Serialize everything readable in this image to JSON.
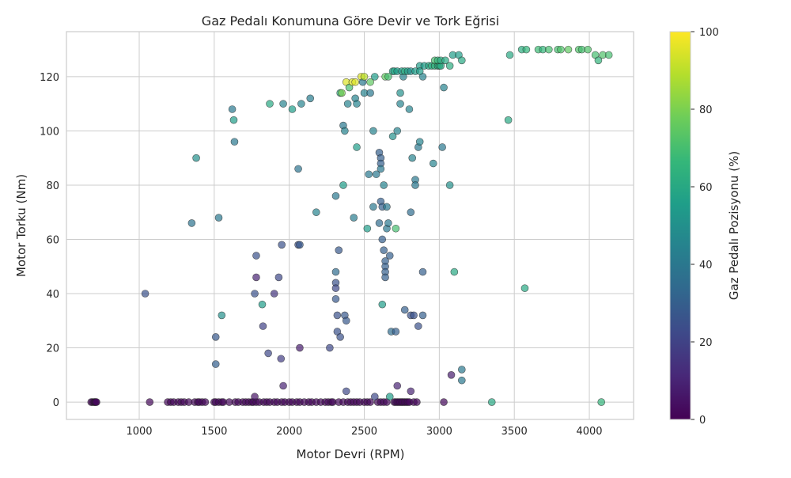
{
  "chart_data": {
    "type": "scatter",
    "title": "Gaz Pedalı Konumuna Göre Devir ve Tork Eğrisi",
    "xlabel": "Motor Devri (RPM)",
    "ylabel": "Motor Torku (Nm)",
    "colorbar_label": "Gaz Pedalı Pozisyonu (%)",
    "xlim": [
      515,
      4295
    ],
    "ylim": [
      -6.4,
      136.6
    ],
    "clim": [
      0,
      100
    ],
    "xticks": [
      "1000",
      "1500",
      "2000",
      "2500",
      "3000",
      "3500",
      "4000"
    ],
    "xtick_values": [
      1000,
      1500,
      2000,
      2500,
      3000,
      3500,
      4000
    ],
    "yticks": [
      "0",
      "20",
      "40",
      "60",
      "80",
      "100",
      "120"
    ],
    "ytick_values": [
      0,
      20,
      40,
      60,
      80,
      100,
      120
    ],
    "cticks": [
      "0",
      "20",
      "40",
      "60",
      "80",
      "100"
    ],
    "ctick_values": [
      0,
      20,
      40,
      60,
      80,
      100
    ],
    "grid": true,
    "colormap": "viridis",
    "zero_torque_rpm": [
      680,
      690,
      700,
      705,
      710,
      715,
      1070,
      1190,
      1210,
      1230,
      1260,
      1280,
      1300,
      1330,
      1370,
      1390,
      1400,
      1420,
      1440,
      1500,
      1510,
      1530,
      1550,
      1560,
      1600,
      1640,
      1660,
      1690,
      1710,
      1730,
      1750,
      1760,
      1780,
      1800,
      1830,
      1850,
      1870,
      1900,
      1920,
      1950,
      1970,
      2000,
      2020,
      2050,
      2070,
      2100,
      2130,
      2150,
      2180,
      2210,
      2240,
      2260,
      2280,
      2290,
      2330,
      2360,
      2390,
      2410,
      2430,
      2450,
      2470,
      2500,
      2520,
      2540,
      2590,
      2610,
      2630,
      2650,
      2700,
      2710,
      2720,
      2730,
      2740,
      2750,
      2760,
      2770,
      2780,
      2790,
      2800,
      2830,
      2850,
      3030
    ],
    "points": [
      [
        1040,
        40,
        25
      ],
      [
        1350,
        66,
        38
      ],
      [
        1380,
        90,
        50
      ],
      [
        1510,
        24,
        28
      ],
      [
        1510,
        14,
        30
      ],
      [
        1530,
        68,
        40
      ],
      [
        1550,
        32,
        50
      ],
      [
        1620,
        108,
        40
      ],
      [
        1630,
        104,
        55
      ],
      [
        1635,
        96,
        40
      ],
      [
        1770,
        40,
        25
      ],
      [
        1780,
        54,
        25
      ],
      [
        1780,
        46,
        10
      ],
      [
        1770,
        2,
        5
      ],
      [
        1820,
        36,
        55
      ],
      [
        1825,
        28,
        20
      ],
      [
        1860,
        18,
        22
      ],
      [
        1870,
        110,
        60
      ],
      [
        1900,
        40,
        15
      ],
      [
        1930,
        46,
        22
      ],
      [
        1945,
        16,
        18
      ],
      [
        1950,
        58,
        25
      ],
      [
        1960,
        110,
        45
      ],
      [
        1960,
        6,
        10
      ],
      [
        2020,
        108,
        55
      ],
      [
        2060,
        86,
        38
      ],
      [
        2060,
        58,
        25
      ],
      [
        2070,
        58,
        28
      ],
      [
        2070,
        20,
        8
      ],
      [
        2080,
        110,
        45
      ],
      [
        2140,
        112,
        42
      ],
      [
        2180,
        70,
        45
      ],
      [
        2270,
        20,
        22
      ],
      [
        2310,
        76,
        40
      ],
      [
        2310,
        48,
        35
      ],
      [
        2310,
        44,
        25
      ],
      [
        2310,
        42,
        22
      ],
      [
        2310,
        38,
        28
      ],
      [
        2320,
        32,
        25
      ],
      [
        2320,
        26,
        25
      ],
      [
        2330,
        56,
        28
      ],
      [
        2340,
        24,
        25
      ],
      [
        2340,
        114,
        62
      ],
      [
        2350,
        114,
        80
      ],
      [
        2360,
        80,
        55
      ],
      [
        2360,
        102,
        40
      ],
      [
        2370,
        32,
        28
      ],
      [
        2380,
        30,
        28
      ],
      [
        2380,
        4,
        22
      ],
      [
        2370,
        100,
        45
      ],
      [
        2380,
        118,
        95
      ],
      [
        2390,
        110,
        45
      ],
      [
        2400,
        116,
        70
      ],
      [
        2420,
        118,
        95
      ],
      [
        2440,
        118,
        95
      ],
      [
        2430,
        68,
        42
      ],
      [
        2440,
        112,
        45
      ],
      [
        2450,
        94,
        55
      ],
      [
        2450,
        110,
        45
      ],
      [
        2480,
        120,
        95
      ],
      [
        2490,
        118,
        40
      ],
      [
        2500,
        120,
        90
      ],
      [
        2500,
        114,
        45
      ],
      [
        2520,
        64,
        55
      ],
      [
        2530,
        84,
        40
      ],
      [
        2540,
        118,
        75
      ],
      [
        2540,
        114,
        40
      ],
      [
        2560,
        100,
        45
      ],
      [
        2560,
        72,
        40
      ],
      [
        2570,
        120,
        55
      ],
      [
        2570,
        2,
        22
      ],
      [
        2580,
        84,
        40
      ],
      [
        2600,
        66,
        35
      ],
      [
        2600,
        92,
        30
      ],
      [
        2610,
        90,
        30
      ],
      [
        2610,
        88,
        30
      ],
      [
        2610,
        86,
        40
      ],
      [
        2610,
        74,
        30
      ],
      [
        2620,
        72,
        30
      ],
      [
        2620,
        60,
        30
      ],
      [
        2620,
        36,
        55
      ],
      [
        2630,
        80,
        45
      ],
      [
        2630,
        56,
        30
      ],
      [
        2640,
        52,
        30
      ],
      [
        2640,
        50,
        30
      ],
      [
        2640,
        48,
        30
      ],
      [
        2640,
        46,
        30
      ],
      [
        2650,
        64,
        40
      ],
      [
        2650,
        72,
        40
      ],
      [
        2660,
        66,
        40
      ],
      [
        2670,
        54,
        30
      ],
      [
        2670,
        2,
        55
      ],
      [
        2680,
        26,
        35
      ],
      [
        2690,
        98,
        50
      ],
      [
        2690,
        122,
        55
      ],
      [
        2710,
        26,
        30
      ],
      [
        2710,
        64,
        70
      ],
      [
        2720,
        6,
        10
      ],
      [
        2720,
        100,
        45
      ],
      [
        2740,
        110,
        45
      ],
      [
        2740,
        114,
        50
      ],
      [
        2770,
        34,
        30
      ],
      [
        2760,
        120,
        45
      ],
      [
        2800,
        108,
        45
      ],
      [
        2810,
        70,
        35
      ],
      [
        2810,
        32,
        25
      ],
      [
        2810,
        4,
        10
      ],
      [
        2820,
        90,
        45
      ],
      [
        2830,
        32,
        25
      ],
      [
        2840,
        82,
        40
      ],
      [
        2840,
        80,
        40
      ],
      [
        2860,
        28,
        25
      ],
      [
        2860,
        94,
        40
      ],
      [
        2870,
        96,
        45
      ],
      [
        2890,
        48,
        30
      ],
      [
        2890,
        32,
        30
      ],
      [
        2890,
        120,
        45
      ],
      [
        2870,
        124,
        55
      ],
      [
        2960,
        88,
        45
      ],
      [
        3020,
        94,
        40
      ],
      [
        3030,
        116,
        45
      ],
      [
        3070,
        80,
        50
      ],
      [
        3080,
        10,
        8
      ],
      [
        3100,
        48,
        60
      ],
      [
        3150,
        12,
        40
      ],
      [
        3150,
        8,
        40
      ],
      [
        3350,
        0,
        60
      ],
      [
        3460,
        104,
        60
      ],
      [
        3470,
        128,
        60
      ],
      [
        3570,
        42,
        60
      ],
      [
        4080,
        0,
        65
      ],
      [
        2640,
        120,
        75
      ],
      [
        2660,
        120,
        70
      ],
      [
        2700,
        122,
        60
      ],
      [
        2720,
        122,
        55
      ],
      [
        2750,
        122,
        55
      ],
      [
        2770,
        122,
        62
      ],
      [
        2790,
        122,
        55
      ],
      [
        2810,
        122,
        50
      ],
      [
        2840,
        122,
        55
      ],
      [
        2870,
        122,
        55
      ],
      [
        2900,
        124,
        55
      ],
      [
        2930,
        124,
        60
      ],
      [
        2950,
        124,
        62
      ],
      [
        2970,
        124,
        65
      ],
      [
        2990,
        124,
        60
      ],
      [
        3000,
        124,
        65
      ],
      [
        3010,
        124,
        60
      ],
      [
        2970,
        126,
        70
      ],
      [
        2990,
        126,
        65
      ],
      [
        3010,
        126,
        62
      ],
      [
        3040,
        126,
        60
      ],
      [
        3070,
        124,
        62
      ],
      [
        3090,
        128,
        55
      ],
      [
        3130,
        128,
        55
      ],
      [
        3150,
        126,
        60
      ],
      [
        3550,
        130,
        62
      ],
      [
        3580,
        130,
        65
      ],
      [
        3660,
        130,
        68
      ],
      [
        3690,
        130,
        65
      ],
      [
        3730,
        130,
        70
      ],
      [
        3790,
        130,
        70
      ],
      [
        3810,
        130,
        72
      ],
      [
        3860,
        130,
        75
      ],
      [
        3930,
        130,
        72
      ],
      [
        3950,
        130,
        70
      ],
      [
        3990,
        130,
        72
      ],
      [
        4040,
        128,
        70
      ],
      [
        4060,
        126,
        65
      ],
      [
        4090,
        128,
        72
      ],
      [
        4130,
        128,
        70
      ]
    ]
  }
}
